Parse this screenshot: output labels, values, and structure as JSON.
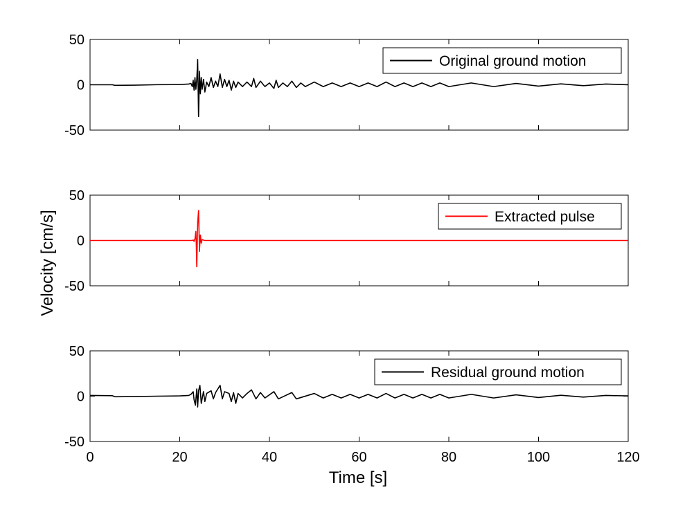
{
  "chart_data": {
    "type": "line",
    "ylabel": "Velocity [cm/s]",
    "xlabel": "Time [s]",
    "xlim": [
      0,
      120
    ],
    "xticks": [
      "0",
      "20",
      "40",
      "60",
      "80",
      "100",
      "120"
    ],
    "ylim": [
      -50,
      50
    ],
    "yticks": [
      "50",
      "0",
      "-50"
    ],
    "legend_position": "top-right",
    "grid": false,
    "panels": [
      {
        "series": [
          {
            "name": "Original ground motion",
            "color": "#000000",
            "points": [
              [
                0,
                0
              ],
              [
                5,
                0
              ],
              [
                5.5,
                -0.6
              ],
              [
                10,
                -0.4
              ],
              [
                15,
                0.1
              ],
              [
                20,
                0.2
              ],
              [
                21,
                0.5
              ],
              [
                22,
                0.8
              ],
              [
                22.5,
                1.5
              ],
              [
                22.8,
                -2
              ],
              [
                23,
                5
              ],
              [
                23.2,
                -6
              ],
              [
                23.4,
                8
              ],
              [
                23.6,
                -5
              ],
              [
                23.8,
                6
              ],
              [
                24,
                28
              ],
              [
                24.2,
                -35
              ],
              [
                24.4,
                15
              ],
              [
                24.6,
                -10
              ],
              [
                24.8,
                8
              ],
              [
                25,
                -5
              ],
              [
                25.3,
                6
              ],
              [
                25.6,
                -8
              ],
              [
                26,
                3
              ],
              [
                26.5,
                -2
              ],
              [
                27,
                8
              ],
              [
                27.5,
                -3
              ],
              [
                28,
                4
              ],
              [
                28.5,
                -2
              ],
              [
                29,
                12
              ],
              [
                29.5,
                -3
              ],
              [
                30,
                6
              ],
              [
                30.5,
                -2
              ],
              [
                31,
                5
              ],
              [
                31.5,
                -6
              ],
              [
                32,
                4
              ],
              [
                32.5,
                -3
              ],
              [
                33,
                3
              ],
              [
                34,
                -2
              ],
              [
                35,
                3
              ],
              [
                36,
                -2
              ],
              [
                36.5,
                7
              ],
              [
                37,
                -3
              ],
              [
                38,
                4
              ],
              [
                39,
                -2
              ],
              [
                40,
                2
              ],
              [
                41,
                -4
              ],
              [
                41.5,
                5
              ],
              [
                42,
                -3
              ],
              [
                43,
                2
              ],
              [
                44,
                -2
              ],
              [
                45,
                4
              ],
              [
                46,
                -3
              ],
              [
                47,
                2
              ],
              [
                48,
                -2
              ],
              [
                50,
                3
              ],
              [
                52,
                -2
              ],
              [
                54,
                2
              ],
              [
                56,
                -2
              ],
              [
                58,
                2
              ],
              [
                60,
                -2
              ],
              [
                62,
                2
              ],
              [
                64,
                -2
              ],
              [
                66,
                3
              ],
              [
                68,
                -2
              ],
              [
                70,
                2
              ],
              [
                72,
                -2
              ],
              [
                74,
                2
              ],
              [
                76,
                -2
              ],
              [
                78,
                2
              ],
              [
                80,
                -2
              ],
              [
                85,
                2
              ],
              [
                90,
                -2
              ],
              [
                95,
                1.5
              ],
              [
                100,
                -1.5
              ],
              [
                105,
                1
              ],
              [
                110,
                -1
              ],
              [
                115,
                0.8
              ],
              [
                120,
                0
              ]
            ]
          }
        ]
      },
      {
        "series": [
          {
            "name": "Extracted pulse",
            "color": "#ff0000",
            "points": [
              [
                0,
                0
              ],
              [
                22.8,
                0
              ],
              [
                23,
                0.5
              ],
              [
                23.2,
                -1
              ],
              [
                23.4,
                2
              ],
              [
                23.6,
                10
              ],
              [
                23.7,
                -6
              ],
              [
                23.8,
                -29
              ],
              [
                24,
                20
              ],
              [
                24.2,
                33
              ],
              [
                24.4,
                -12
              ],
              [
                24.6,
                6
              ],
              [
                24.8,
                -3
              ],
              [
                25,
                1
              ],
              [
                25.5,
                0
              ],
              [
                120,
                0
              ]
            ]
          }
        ]
      },
      {
        "series": [
          {
            "name": "Residual ground motion",
            "color": "#000000",
            "points": [
              [
                0,
                0.8
              ],
              [
                5,
                0.5
              ],
              [
                5.5,
                -0.6
              ],
              [
                10,
                -0.4
              ],
              [
                15,
                0
              ],
              [
                20,
                0.3
              ],
              [
                21,
                0.5
              ],
              [
                22,
                0.8
              ],
              [
                22.5,
                2
              ],
              [
                23,
                5
              ],
              [
                23.2,
                -4
              ],
              [
                23.5,
                -10
              ],
              [
                23.8,
                8
              ],
              [
                24,
                -12
              ],
              [
                24.2,
                6
              ],
              [
                24.5,
                12
              ],
              [
                24.8,
                -8
              ],
              [
                25.3,
                5
              ],
              [
                25.6,
                -6
              ],
              [
                26,
                3
              ],
              [
                27,
                6
              ],
              [
                27.5,
                -3
              ],
              [
                28,
                4
              ],
              [
                29,
                12
              ],
              [
                29.5,
                -3
              ],
              [
                30,
                5
              ],
              [
                31,
                3
              ],
              [
                31.5,
                -6
              ],
              [
                32,
                4
              ],
              [
                32.5,
                -8
              ],
              [
                33,
                3
              ],
              [
                34,
                -2
              ],
              [
                35,
                3
              ],
              [
                36,
                7
              ],
              [
                37,
                -3
              ],
              [
                38,
                4
              ],
              [
                39,
                -2
              ],
              [
                41,
                5
              ],
              [
                42,
                -3
              ],
              [
                45,
                4
              ],
              [
                46,
                -3
              ],
              [
                50,
                3
              ],
              [
                52,
                -2
              ],
              [
                54,
                2
              ],
              [
                56,
                -2
              ],
              [
                58,
                2
              ],
              [
                60,
                -2
              ],
              [
                62,
                2
              ],
              [
                64,
                -2
              ],
              [
                66,
                3
              ],
              [
                68,
                -2
              ],
              [
                70,
                2
              ],
              [
                72,
                -2
              ],
              [
                74,
                2
              ],
              [
                76,
                -2
              ],
              [
                78,
                2
              ],
              [
                80,
                -2
              ],
              [
                85,
                2
              ],
              [
                90,
                -2
              ],
              [
                95,
                1.5
              ],
              [
                100,
                -1.5
              ],
              [
                105,
                1
              ],
              [
                110,
                -1
              ],
              [
                115,
                0.8
              ],
              [
                120,
                0.3
              ]
            ]
          }
        ]
      }
    ]
  }
}
